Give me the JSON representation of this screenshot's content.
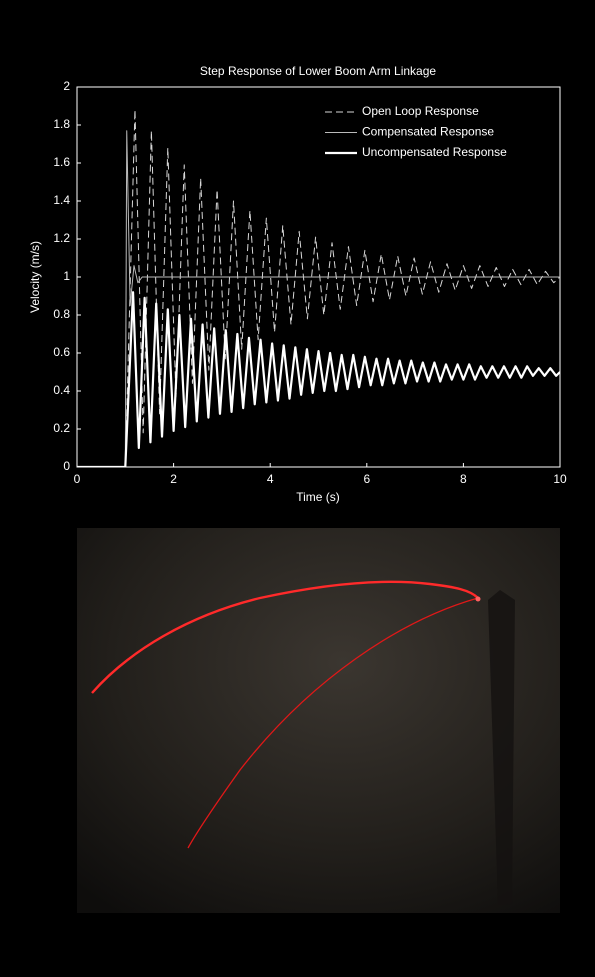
{
  "chart_data": {
    "type": "line",
    "title": "Step Response of Lower Boom Arm Linkage",
    "x_label": "Time (s)",
    "y_label": "Velocity (m/s)",
    "xlim": [
      0,
      10
    ],
    "xticks": [
      0,
      2,
      4,
      6,
      8,
      10
    ],
    "ylim": [
      0,
      2
    ],
    "yticks": [
      0,
      0.2,
      0.4,
      0.6,
      0.8,
      1,
      1.2,
      1.4,
      1.6,
      1.8,
      2
    ],
    "legend": "upper right",
    "series": [
      {
        "name": "Open Loop Response",
        "color": "#d8d8d8",
        "line_style": "dashed",
        "line_width": 1,
        "x": [
          0,
          1.0,
          1.2,
          1.37,
          1.54,
          1.71,
          1.88,
          2.05,
          2.22,
          2.39,
          2.56,
          2.73,
          2.9,
          3.07,
          3.24,
          3.41,
          3.58,
          3.75,
          3.92,
          4.09,
          4.26,
          4.43,
          4.6,
          4.77,
          4.94,
          5.11,
          5.28,
          5.45,
          5.62,
          5.79,
          5.96,
          6.13,
          6.3,
          6.47,
          6.64,
          6.81,
          6.98,
          7.15,
          7.32,
          7.49,
          7.66,
          7.83,
          8.0,
          8.17,
          8.34,
          8.51,
          8.68,
          8.85,
          9.02,
          9.19,
          9.36,
          9.53,
          9.7,
          9.87,
          10
        ],
        "values": [
          0,
          0,
          1.88,
          0.18,
          1.77,
          0.28,
          1.68,
          0.37,
          1.59,
          0.44,
          1.52,
          0.51,
          1.46,
          0.57,
          1.4,
          0.62,
          1.35,
          0.67,
          1.31,
          0.71,
          1.27,
          0.75,
          1.24,
          0.78,
          1.21,
          0.8,
          1.18,
          0.83,
          1.16,
          0.85,
          1.14,
          0.87,
          1.12,
          0.88,
          1.11,
          0.9,
          1.1,
          0.91,
          1.08,
          0.92,
          1.07,
          0.93,
          1.06,
          0.94,
          1.06,
          0.95,
          1.05,
          0.95,
          1.04,
          0.96,
          1.04,
          0.96,
          1.03,
          0.97,
          1.0
        ]
      },
      {
        "name": "Compensated Response",
        "color": "#bbbbbb",
        "line_style": "solid",
        "line_width": 1,
        "x": [
          0,
          1.0,
          1.03,
          1.1,
          1.18,
          1.26,
          1.35,
          10
        ],
        "values": [
          0,
          0,
          1.77,
          0.85,
          1.06,
          0.97,
          1.0,
          1.0
        ]
      },
      {
        "name": "Uncompensated Response",
        "color": "#ffffff",
        "line_style": "solid",
        "line_width": 2.2,
        "x": [
          0,
          1.0,
          1.16,
          1.28,
          1.4,
          1.52,
          1.64,
          1.76,
          1.88,
          2.0,
          2.12,
          2.24,
          2.36,
          2.48,
          2.6,
          2.72,
          2.84,
          2.96,
          3.08,
          3.2,
          3.32,
          3.44,
          3.56,
          3.68,
          3.8,
          3.92,
          4.04,
          4.16,
          4.28,
          4.4,
          4.52,
          4.64,
          4.76,
          4.88,
          5.0,
          5.12,
          5.24,
          5.36,
          5.48,
          5.6,
          5.72,
          5.84,
          5.96,
          6.08,
          6.2,
          6.32,
          6.44,
          6.56,
          6.68,
          6.8,
          6.92,
          7.04,
          7.16,
          7.28,
          7.4,
          7.52,
          7.64,
          7.76,
          7.88,
          8.0,
          8.12,
          8.24,
          8.36,
          8.48,
          8.6,
          8.72,
          8.84,
          8.96,
          9.08,
          9.2,
          9.32,
          9.44,
          9.56,
          9.68,
          9.8,
          9.92,
          10
        ],
        "values": [
          0,
          0,
          0.92,
          0.1,
          0.89,
          0.13,
          0.86,
          0.16,
          0.83,
          0.19,
          0.8,
          0.21,
          0.78,
          0.24,
          0.75,
          0.26,
          0.73,
          0.28,
          0.72,
          0.29,
          0.7,
          0.31,
          0.68,
          0.33,
          0.67,
          0.34,
          0.65,
          0.35,
          0.64,
          0.36,
          0.63,
          0.38,
          0.62,
          0.39,
          0.61,
          0.4,
          0.6,
          0.4,
          0.59,
          0.41,
          0.59,
          0.42,
          0.58,
          0.43,
          0.57,
          0.43,
          0.57,
          0.44,
          0.56,
          0.44,
          0.56,
          0.45,
          0.55,
          0.45,
          0.55,
          0.45,
          0.54,
          0.46,
          0.54,
          0.46,
          0.54,
          0.46,
          0.53,
          0.47,
          0.53,
          0.47,
          0.53,
          0.47,
          0.53,
          0.47,
          0.53,
          0.48,
          0.52,
          0.48,
          0.52,
          0.48,
          0.5
        ]
      }
    ]
  }
}
